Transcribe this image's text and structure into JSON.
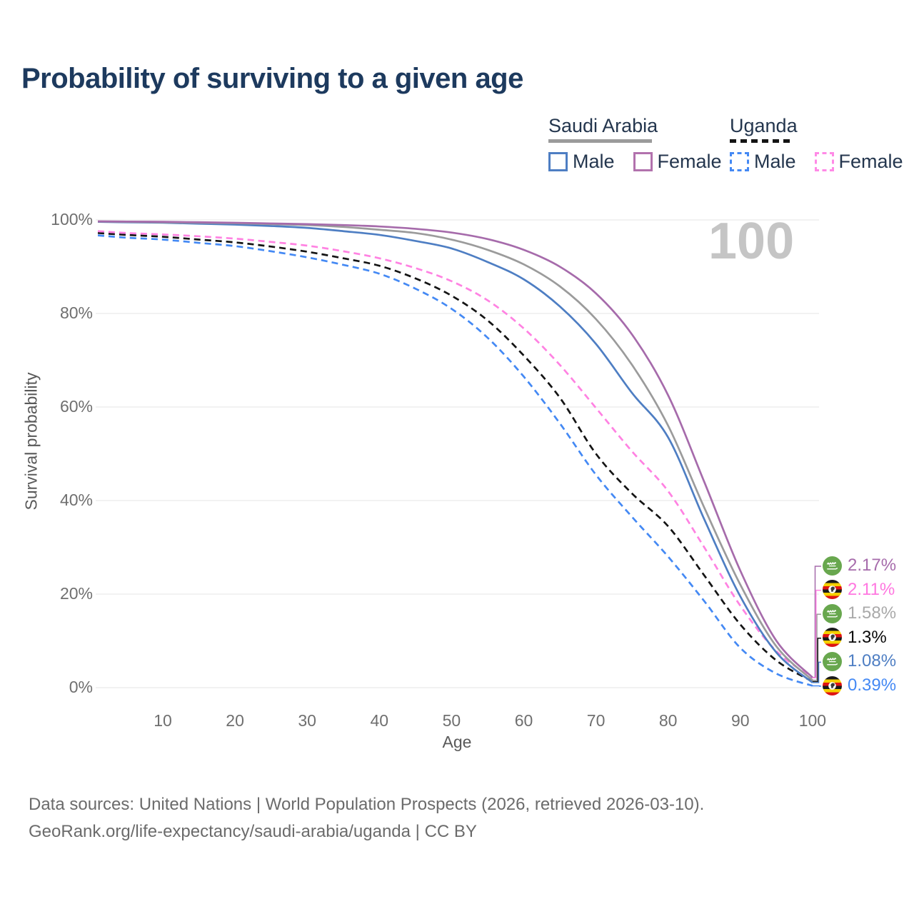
{
  "title": "Probability of surviving to a given age",
  "watermark": "100",
  "legend": {
    "groups": [
      {
        "country": "Saudi Arabia",
        "underline_style": "solid",
        "underline_color": "#9b9b9b",
        "underline_width": 145,
        "items": [
          {
            "label": "Male",
            "color": "#4e7ec3",
            "dashed": false
          },
          {
            "label": "Female",
            "color": "#b272ad",
            "dashed": false
          }
        ]
      },
      {
        "country": "Uganda",
        "underline_style": "dashed",
        "underline_color": "#141414",
        "underline_width": 88,
        "items": [
          {
            "label": "Male",
            "color": "#4489f4",
            "dashed": true
          },
          {
            "label": "Female",
            "color": "#ff8ae6",
            "dashed": true
          }
        ]
      }
    ]
  },
  "axes": {
    "y_title": "Survival probability",
    "x_title": "Age",
    "y_ticks": [
      "0%",
      "20%",
      "40%",
      "60%",
      "80%",
      "100%"
    ],
    "x_ticks": [
      10,
      20,
      30,
      40,
      50,
      60,
      70,
      80,
      90,
      100
    ],
    "grid": true,
    "grid_color": "#e9e9e9"
  },
  "chart_data": {
    "type": "line",
    "title": "Probability of surviving to a given age",
    "xlabel": "Age",
    "ylabel": "Survival probability",
    "xlim": [
      1,
      100
    ],
    "ylim": [
      0,
      100
    ],
    "x": [
      1,
      5,
      10,
      15,
      20,
      25,
      30,
      35,
      40,
      45,
      50,
      55,
      60,
      65,
      70,
      75,
      80,
      85,
      90,
      95,
      100
    ],
    "series": [
      {
        "name": "Saudi Arabia Female",
        "color": "#a66bab",
        "dashed": false,
        "flag": "saudi-arabia-flag-icon",
        "end_label": "2.17%",
        "end_value": 2.17,
        "label_color": "#a66bab",
        "values": [
          99.7,
          99.65,
          99.6,
          99.5,
          99.4,
          99.25,
          99.1,
          98.9,
          98.6,
          98.1,
          97.3,
          95.9,
          93.6,
          90.0,
          84.3,
          75.5,
          62.5,
          44.0,
          25.0,
          10.0,
          2.17
        ]
      },
      {
        "name": "Saudi Arabia (both sexes)",
        "color": "#9b9b9b",
        "dashed": false,
        "flag": "saudi-arabia-flag-icon",
        "end_label": "1.58%",
        "end_value": 1.58,
        "label_color": "#a9a9a9",
        "values": [
          99.65,
          99.6,
          99.5,
          99.4,
          99.3,
          99.1,
          98.9,
          98.5,
          97.9,
          97.2,
          95.8,
          93.6,
          90.5,
          85.8,
          78.8,
          69.0,
          56.0,
          38.5,
          22.0,
          8.8,
          1.58
        ]
      },
      {
        "name": "Saudi Arabia Male",
        "color": "#4e7ec3",
        "dashed": false,
        "flag": "saudi-arabia-flag-icon",
        "end_label": "1.08%",
        "end_value": 1.08,
        "label_color": "#4e7ec3",
        "values": [
          99.6,
          99.5,
          99.4,
          99.2,
          99.0,
          98.7,
          98.3,
          97.6,
          96.8,
          95.5,
          93.9,
          91.0,
          87.3,
          81.5,
          73.5,
          63.0,
          53.5,
          36.0,
          19.5,
          7.5,
          1.08
        ]
      },
      {
        "name": "Uganda Female",
        "color": "#ff82e2",
        "dashed": true,
        "flag": "uganda-flag-icon",
        "end_label": "2.11%",
        "end_value": 2.11,
        "label_color": "#ff77e0",
        "values": [
          97.6,
          97.2,
          96.9,
          96.5,
          96.0,
          95.3,
          94.5,
          93.3,
          91.8,
          89.7,
          86.9,
          82.8,
          76.8,
          69.0,
          59.8,
          50.5,
          42.0,
          30.0,
          17.5,
          7.8,
          2.11
        ]
      },
      {
        "name": "Uganda (both sexes)",
        "color": "#141414",
        "dashed": true,
        "flag": "uganda-flag-icon",
        "end_label": "1.3%",
        "end_value": 1.3,
        "label_color": "#0a0a0a",
        "values": [
          97.2,
          96.8,
          96.4,
          95.8,
          95.2,
          94.3,
          93.2,
          91.8,
          90.2,
          87.5,
          83.8,
          78.5,
          71.0,
          62.0,
          50.0,
          41.5,
          34.5,
          24.0,
          13.5,
          5.8,
          1.3
        ]
      },
      {
        "name": "Uganda Male",
        "color": "#4489f4",
        "dashed": true,
        "flag": "uganda-flag-icon",
        "end_label": "0.39%",
        "end_value": 0.39,
        "label_color": "#4489f4",
        "values": [
          96.7,
          96.2,
          95.8,
          95.1,
          94.4,
          93.3,
          92.0,
          90.4,
          88.5,
          85.3,
          81.0,
          74.8,
          66.5,
          56.5,
          45.5,
          36.5,
          28.0,
          18.5,
          8.5,
          3.0,
          0.39
        ]
      }
    ]
  },
  "footer": {
    "line1": "Data sources: United Nations | World Population Prospects (2026, retrieved 2026-03-10).",
    "line2": "GeoRank.org/life-expectancy/saudi-arabia/uganda | CC BY"
  }
}
